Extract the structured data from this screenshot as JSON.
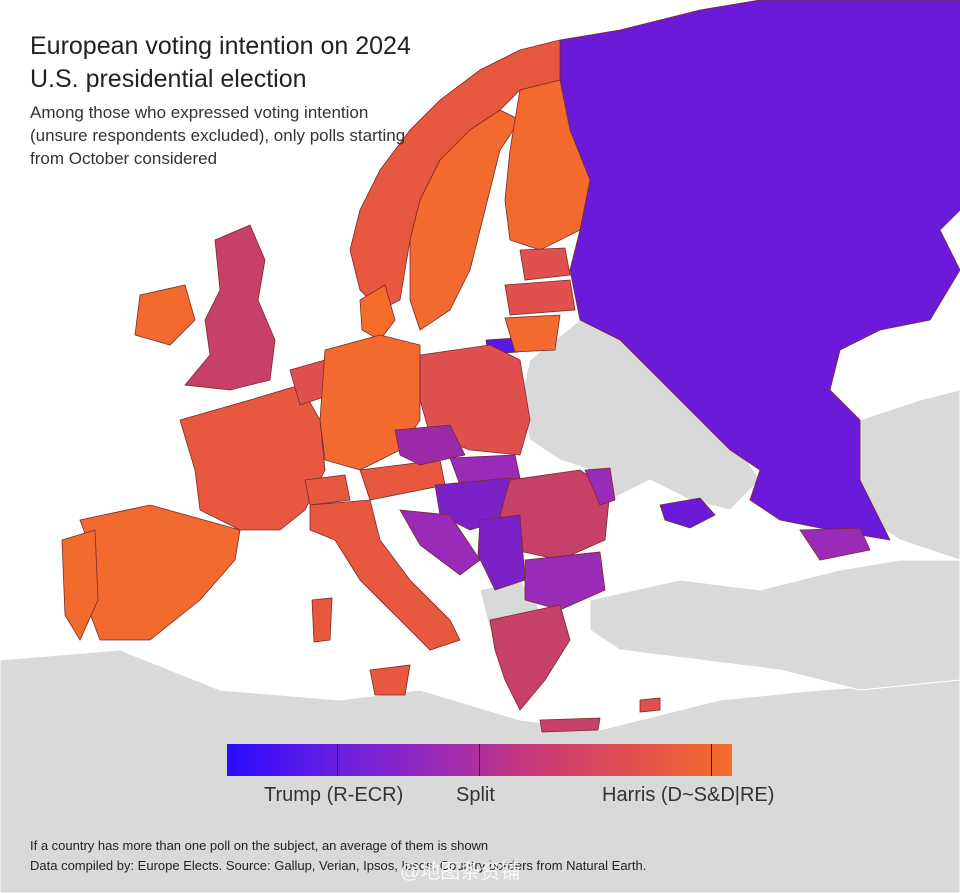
{
  "title": "European voting intention on 2024 U.S. presidential election",
  "subtitle": "Among those who expressed voting intention (unsure respondents excluded), only polls starting from October considered",
  "legend": {
    "left_label": "Trump (R-ECR)",
    "mid_label": "Split",
    "right_label": "Harris (D~S&D|RE)",
    "colors": {
      "trump": "#2a0cff",
      "split": "#c8387a",
      "harris": "#f46d2a"
    }
  },
  "footnote_1": "If a country has more than one poll on the subject, an average of them is shown",
  "footnote_2": "Data compiled by: Europe Elects. Source: Gallup, Verian, Ipsos, Ipsos. Country borders from Natural Earth.",
  "watermark": "@地图条资铺",
  "colors": {
    "background_land": "#d9d9d9",
    "sea": "#ffffff",
    "russia": "#6a1ad8",
    "harris_strong": "#f26a2e",
    "harris_mid": "#e8583f",
    "split": "#c7406a",
    "lean_trump": "#9a2aa8",
    "trump_mid": "#7a22c8"
  }
}
